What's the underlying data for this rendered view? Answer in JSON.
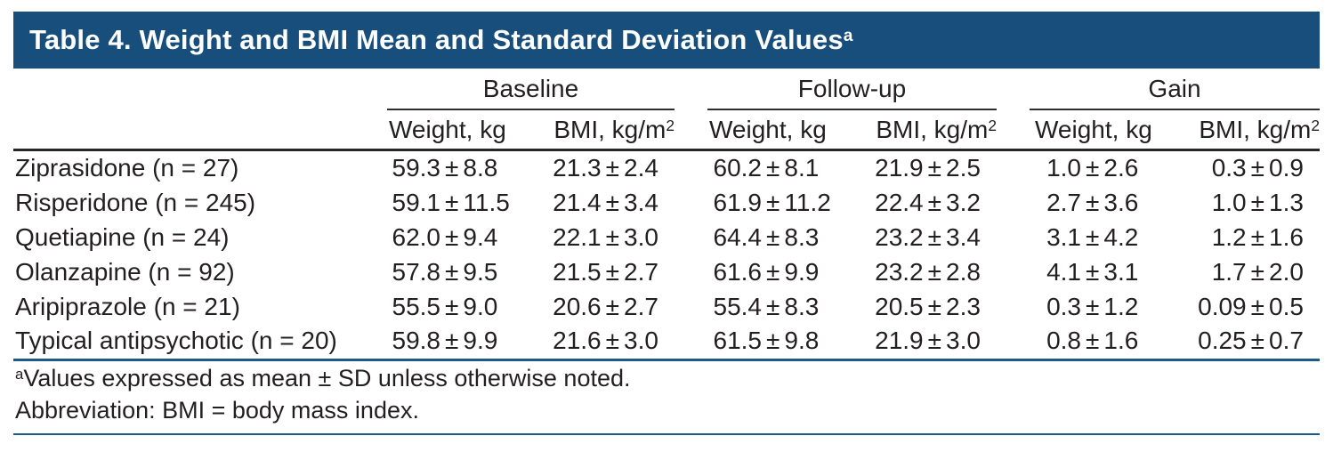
{
  "title": {
    "text": "Table 4. Weight and BMI Mean and Standard Deviation Values",
    "sup": "a"
  },
  "colors": {
    "title_bar_bg": "#174e7c",
    "title_text": "#ffffff",
    "rule_blue": "#1d5a88",
    "body_text": "#231f20"
  },
  "columns": {
    "groups": [
      {
        "label": "Baseline"
      },
      {
        "label": "Follow-up"
      },
      {
        "label": "Gain"
      }
    ],
    "sub_weight": "Weight, kg",
    "sub_bmi_main": "BMI, kg/m",
    "sub_bmi_sup": "2"
  },
  "rows": [
    {
      "label": "Ziprasidone (n = 27)",
      "baseline_weight": "59.3 ± 8.8",
      "baseline_bmi": "21.3 ± 2.4",
      "followup_weight": "60.2 ± 8.1",
      "followup_bmi": "21.9 ± 2.5",
      "gain_weight": "1.0 ± 2.6",
      "gain_bmi": "0.3 ± 0.9"
    },
    {
      "label": "Risperidone (n = 245)",
      "baseline_weight": "59.1 ± 11.5",
      "baseline_bmi": "21.4 ± 3.4",
      "followup_weight": "61.9 ± 11.2",
      "followup_bmi": "22.4 ± 3.2",
      "gain_weight": "2.7 ± 3.6",
      "gain_bmi": "1.0 ± 1.3"
    },
    {
      "label": "Quetiapine (n = 24)",
      "baseline_weight": "62.0 ± 9.4",
      "baseline_bmi": "22.1 ± 3.0",
      "followup_weight": "64.4 ± 8.3",
      "followup_bmi": "23.2 ± 3.4",
      "gain_weight": "3.1 ± 4.2",
      "gain_bmi": "1.2 ± 1.6"
    },
    {
      "label": "Olanzapine (n = 92)",
      "baseline_weight": "57.8 ± 9.5",
      "baseline_bmi": "21.5 ± 2.7",
      "followup_weight": "61.6 ± 9.9",
      "followup_bmi": "23.2 ± 2.8",
      "gain_weight": "4.1 ± 3.1",
      "gain_bmi": "1.7 ± 2.0"
    },
    {
      "label": "Aripiprazole (n = 21)",
      "baseline_weight": "55.5 ± 9.0",
      "baseline_bmi": "20.6 ± 2.7",
      "followup_weight": "55.4 ± 8.3",
      "followup_bmi": "20.5 ± 2.3",
      "gain_weight": "0.3 ± 1.2",
      "gain_bmi": "0.09 ± 0.5"
    },
    {
      "label": "Typical antipsychotic (n = 20)",
      "baseline_weight": "59.8 ± 9.9",
      "baseline_bmi": "21.6 ± 3.0",
      "followup_weight": "61.5 ± 9.8",
      "followup_bmi": "21.9 ± 3.0",
      "gain_weight": "0.8 ± 1.6",
      "gain_bmi": "0.25 ± 0.7"
    }
  ],
  "footnotes": [
    {
      "sup": "a",
      "text": "Values expressed as mean ± SD unless otherwise noted."
    },
    {
      "sup": "",
      "text": "Abbreviation: BMI = body mass index."
    }
  ]
}
